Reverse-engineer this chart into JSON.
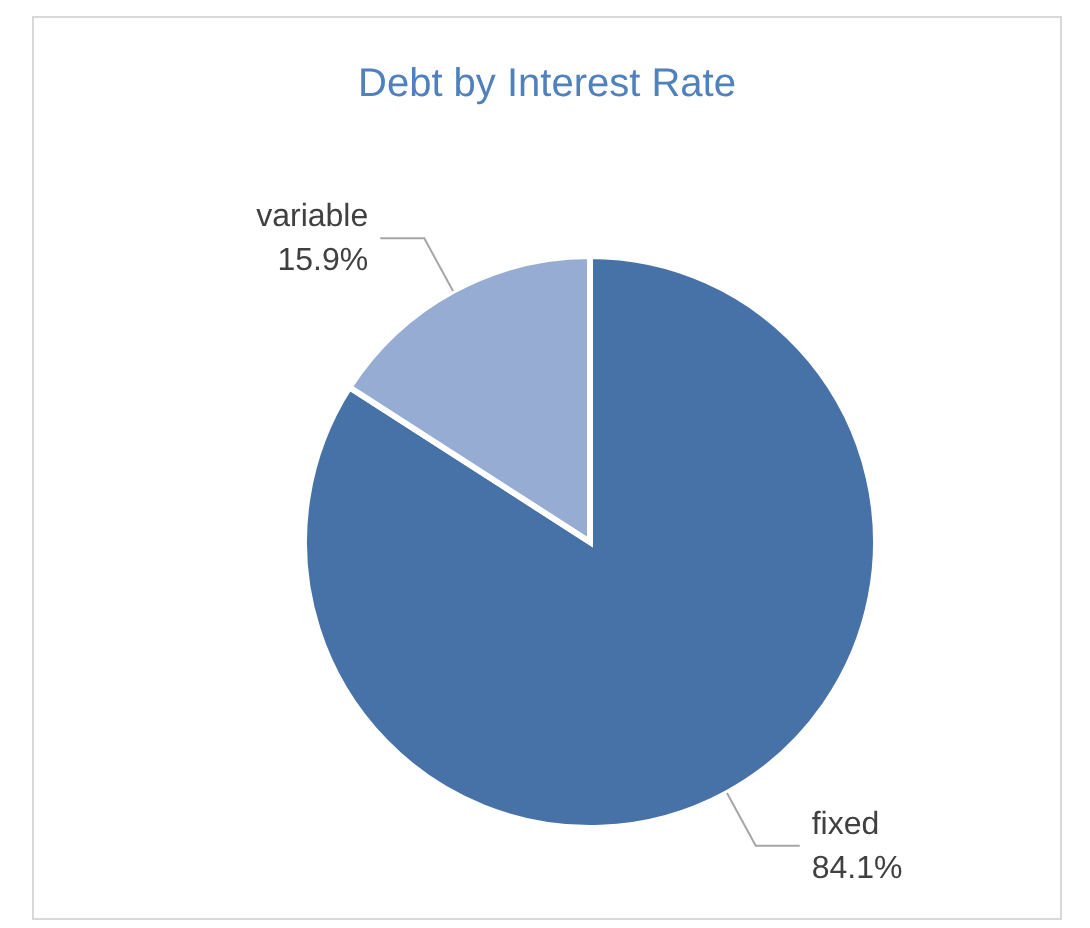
{
  "chart_data": {
    "type": "pie",
    "title": "Debt by Interest Rate",
    "categories": [
      "fixed",
      "variable"
    ],
    "values": [
      84.1,
      15.9
    ],
    "colors": [
      "#4672a8",
      "#97acd3"
    ],
    "value_labels": [
      "84.1%",
      "15.9%"
    ]
  }
}
